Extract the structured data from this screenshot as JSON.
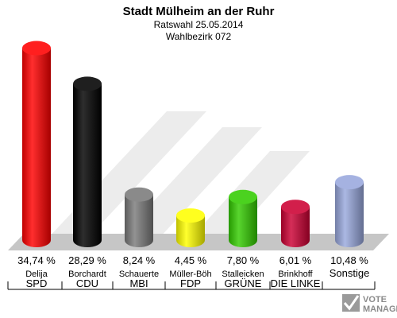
{
  "chart_data": {
    "type": "bar",
    "title": "Stadt Mülheim an der Ruhr",
    "subtitle": "Ratswahl 25.05.2014",
    "subtitle2": "Wahlbezirk 072",
    "categories": [
      "SPD",
      "CDU",
      "MBI",
      "FDP",
      "GRÜNE",
      "DIE LINKE",
      "Sonstige"
    ],
    "candidates": [
      "Delija",
      "Borchardt",
      "Schauerte",
      "Müller-Böh",
      "Stalleicken",
      "Brinkhoff",
      ""
    ],
    "values": [
      34.74,
      28.29,
      8.24,
      4.45,
      7.8,
      6.01,
      10.48
    ],
    "value_labels": [
      "34,74 %",
      "28,29 %",
      "8,24 %",
      "4,45 %",
      "7,80 %",
      "6,01 %",
      "10,48 %"
    ],
    "colors": [
      "#ff0000",
      "#000000",
      "#7a7a7a",
      "#ffff00",
      "#33cc00",
      "#cc0033",
      "#99a8dd"
    ],
    "ylim": [
      0,
      36
    ],
    "grid": false,
    "legend": "none"
  },
  "logo": {
    "line1": "VOTE",
    "line2": "MANAGER"
  }
}
